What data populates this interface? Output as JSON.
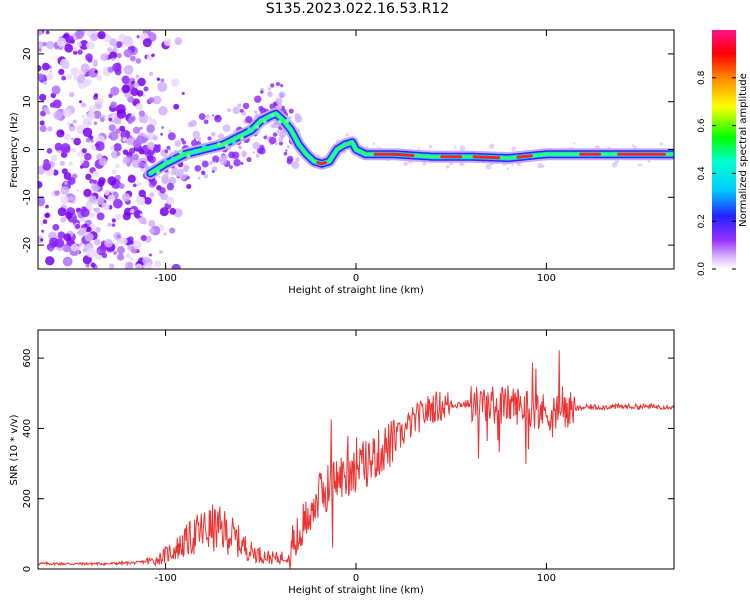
{
  "figure": {
    "title": "S135.2023.022.16.53.R12"
  },
  "chart_data": [
    {
      "type": "heatmap",
      "xlabel": "Height of straight line (km)",
      "ylabel": "Frequency (Hz)",
      "xlim": [
        -167,
        167
      ],
      "ylim": [
        -25,
        25
      ],
      "x_ticks": [
        -100,
        0,
        100
      ],
      "y_ticks": [
        -20,
        -10,
        0,
        10,
        20
      ],
      "colorbar": {
        "label": "Normalized spectral amplitude",
        "range": [
          0,
          1
        ],
        "ticks": [
          0.0,
          0.2,
          0.4,
          0.6,
          0.8
        ]
      },
      "ridge": {
        "x": [
          -108,
          -100,
          -90,
          -80,
          -70,
          -60,
          -55,
          -50,
          -45,
          -42,
          -38,
          -34,
          -30,
          -26,
          -22,
          -18,
          -14,
          -10,
          -6,
          -2,
          0,
          5,
          20,
          40,
          60,
          80,
          100,
          120,
          140,
          166
        ],
        "y": [
          -5,
          -3,
          -1,
          0,
          1,
          3,
          4,
          6,
          7,
          7.5,
          6,
          4,
          1,
          -1,
          -2.5,
          -3,
          -2.5,
          0,
          1,
          1.5,
          0,
          -1,
          -1,
          -1.5,
          -1.5,
          -1.8,
          -1,
          -1,
          -1,
          -1
        ]
      },
      "grid": false
    },
    {
      "type": "line",
      "xlabel": "Height of straight line (km)",
      "ylabel": "SNR (10 * v/v)",
      "xlim": [
        -167,
        167
      ],
      "ylim": [
        0,
        680
      ],
      "x_ticks": [
        -100,
        0,
        100
      ],
      "y_ticks": [
        0,
        200,
        400,
        600
      ],
      "series": [
        {
          "color": "#ee3333",
          "x": [
            -167,
            -150,
            -130,
            -115,
            -105,
            -100,
            -95,
            -90,
            -85,
            -80,
            -75,
            -70,
            -65,
            -60,
            -55,
            -50,
            -45,
            -40,
            -35,
            -30,
            -27,
            -25,
            -20,
            -15,
            -10,
            -5,
            0,
            5,
            10,
            15,
            20,
            25,
            30,
            35,
            40,
            50,
            60,
            70,
            80,
            90,
            100,
            110,
            120,
            140,
            167
          ],
          "y": [
            15,
            15,
            15,
            18,
            25,
            40,
            55,
            75,
            95,
            110,
            115,
            110,
            95,
            70,
            50,
            40,
            32,
            30,
            45,
            90,
            130,
            160,
            200,
            235,
            255,
            270,
            285,
            300,
            320,
            345,
            360,
            390,
            420,
            440,
            460,
            468,
            470,
            465,
            470,
            460,
            445,
            450,
            460,
            462,
            462
          ]
        }
      ],
      "grid": false
    }
  ]
}
